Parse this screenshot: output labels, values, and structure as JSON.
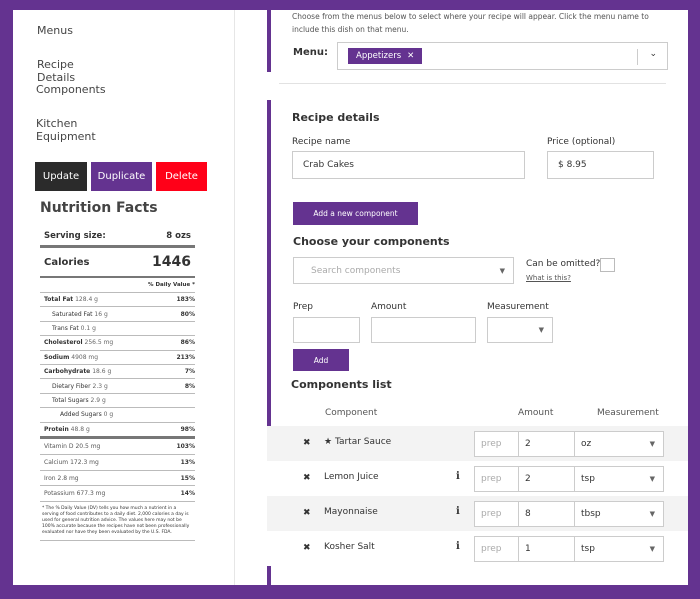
{
  "nav": {
    "items": [
      "Menus",
      "Recipe Details",
      "Components",
      "Kitchen Equipment"
    ]
  },
  "actions": {
    "update": "Update",
    "duplicate": "Duplicate",
    "delete": "Delete"
  },
  "colors": {
    "brand": "#643390",
    "update": "#2b2b2b",
    "delete": "#ff0018"
  },
  "nutrition": {
    "title": "Nutrition Facts",
    "serving_label": "Serving size:",
    "serving_value": "8 ozs",
    "calories_label": "Calories",
    "calories_value": "1446",
    "dv_header": "% Daily Value *",
    "rows": [
      {
        "name": "Total Fat",
        "amount": "128.4 g",
        "dv": "183%",
        "bold": true,
        "indent": 0
      },
      {
        "name": "Saturated Fat",
        "amount": "16 g",
        "dv": "80%",
        "bold": false,
        "indent": 1
      },
      {
        "name": "Trans Fat",
        "amount": "0.1 g",
        "dv": "",
        "bold": false,
        "indent": 1
      },
      {
        "name": "Cholesterol",
        "amount": "256.5 mg",
        "dv": "86%",
        "bold": true,
        "indent": 0
      },
      {
        "name": "Sodium",
        "amount": "4908 mg",
        "dv": "213%",
        "bold": true,
        "indent": 0
      },
      {
        "name": "Carbohydrate",
        "amount": "18.6 g",
        "dv": "7%",
        "bold": true,
        "indent": 0
      },
      {
        "name": "Dietary Fiber",
        "amount": "2.3 g",
        "dv": "8%",
        "bold": false,
        "indent": 1
      },
      {
        "name": "Total Sugars",
        "amount": "2.9 g",
        "dv": "",
        "bold": false,
        "indent": 1
      },
      {
        "name": "Added Sugars",
        "amount": "0 g",
        "dv": "",
        "bold": false,
        "indent": 2
      },
      {
        "name": "Protein",
        "amount": "48.8 g",
        "dv": "98%",
        "bold": true,
        "indent": 0
      }
    ],
    "vitamins": [
      {
        "name": "Vitamin D",
        "amount": "20.5 mg",
        "dv": "103%"
      },
      {
        "name": "Calcium",
        "amount": "172.3 mg",
        "dv": "13%"
      },
      {
        "name": "Iron",
        "amount": "2.8 mg",
        "dv": "15%"
      },
      {
        "name": "Potassium",
        "amount": "677.3 mg",
        "dv": "14%"
      }
    ],
    "footnote": "* The % Daily Value (DV) tells you how much a nutrient in a serving of food contributes to a daily diet. 2,000 calories a day is used for general nutrition advice. The values here may not be 100% accurate because the recipes have not been professionally evaluated nor have they been evaluated by the U.S. FDA."
  },
  "menus": {
    "instructions": "Choose from the menus below to select where your recipe will appear. Click the menu name to include this dish on that menu.",
    "label": "Menu:",
    "selected_tag": "Appetizers"
  },
  "details": {
    "heading": "Recipe details",
    "name_label": "Recipe name",
    "name_value": "Crab Cakes",
    "price_label": "Price (optional)",
    "price_value": "$ 8.95",
    "add_component": "Add a new component"
  },
  "choose": {
    "heading": "Choose your components",
    "search_placeholder": "Search components",
    "omit_label": "Can be omitted?",
    "omit_link": "What is this?",
    "prep_label": "Prep",
    "amount_label": "Amount",
    "measurement_label": "Measurement",
    "add": "Add"
  },
  "list": {
    "heading": "Components list",
    "col_component": "Component",
    "col_amount": "Amount",
    "col_measurement": "Measurement",
    "rows": [
      {
        "name": "Tartar Sauce",
        "starred": true,
        "info": false,
        "prep_placeholder": "prep",
        "amount": "2",
        "unit": "oz"
      },
      {
        "name": "Lemon Juice",
        "starred": false,
        "info": true,
        "prep_placeholder": "prep",
        "amount": "2",
        "unit": "tsp"
      },
      {
        "name": "Mayonnaise",
        "starred": false,
        "info": true,
        "prep_placeholder": "prep",
        "amount": "8",
        "unit": "tbsp"
      },
      {
        "name": "Kosher Salt",
        "starred": false,
        "info": true,
        "prep_placeholder": "prep",
        "amount": "1",
        "unit": "tsp"
      }
    ]
  }
}
